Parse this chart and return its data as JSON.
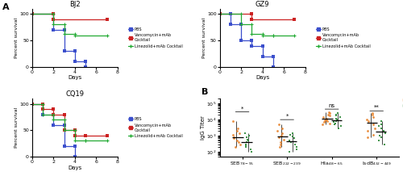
{
  "panels": {
    "BJ2": {
      "title": "BJ2",
      "pbs": {
        "x": [
          0,
          2,
          2,
          3,
          3,
          4,
          4,
          5,
          5
        ],
        "y": [
          100,
          100,
          70,
          70,
          30,
          30,
          10,
          10,
          0
        ]
      },
      "vanc": {
        "x": [
          0,
          2,
          2,
          7
        ],
        "y": [
          100,
          100,
          90,
          90
        ]
      },
      "line_": {
        "x": [
          0,
          2,
          2,
          3,
          3,
          4,
          4,
          7
        ],
        "y": [
          100,
          100,
          80,
          80,
          62,
          62,
          60,
          60
        ]
      }
    },
    "GZ9": {
      "title": "GZ9",
      "pbs": {
        "x": [
          0,
          1,
          1,
          2,
          2,
          3,
          3,
          4,
          4,
          5,
          5
        ],
        "y": [
          100,
          100,
          80,
          80,
          50,
          50,
          40,
          40,
          20,
          20,
          0
        ]
      },
      "vanc": {
        "x": [
          0,
          3,
          3,
          7
        ],
        "y": [
          100,
          100,
          90,
          90
        ]
      },
      "line_": {
        "x": [
          0,
          2,
          2,
          3,
          3,
          4,
          4,
          5,
          5,
          7
        ],
        "y": [
          100,
          100,
          80,
          80,
          62,
          62,
          60,
          60,
          60,
          60
        ]
      }
    },
    "CQ19": {
      "title": "CQ19",
      "pbs": {
        "x": [
          0,
          1,
          1,
          2,
          2,
          3,
          3,
          4,
          4
        ],
        "y": [
          100,
          100,
          80,
          80,
          60,
          60,
          20,
          20,
          0
        ]
      },
      "vanc": {
        "x": [
          0,
          1,
          1,
          2,
          2,
          3,
          3,
          4,
          4,
          5,
          5,
          7
        ],
        "y": [
          100,
          100,
          90,
          90,
          80,
          80,
          50,
          50,
          40,
          40,
          40,
          40
        ]
      },
      "line_": {
        "x": [
          0,
          1,
          1,
          2,
          2,
          3,
          3,
          4,
          4,
          5,
          5,
          7
        ],
        "y": [
          100,
          100,
          80,
          80,
          70,
          70,
          50,
          50,
          30,
          30,
          30,
          30
        ]
      }
    }
  },
  "scatter": {
    "categories": [
      "SEB$_{78-95}$",
      "SEB$_{222-239}$",
      "Hla$_{48-65}$",
      "IsdB$_{432-449}$"
    ],
    "mrsa_color": "#E8822A",
    "healthy_color": "#2E8B3A",
    "mrsa_data": [
      [
        200,
        300,
        400,
        500,
        700,
        800,
        1200,
        1500,
        2000,
        3000,
        8000
      ],
      [
        200,
        300,
        400,
        600,
        800,
        1000,
        1500,
        2000,
        3000,
        5000
      ],
      [
        5000,
        6000,
        7000,
        8000,
        9000,
        10000,
        12000,
        15000,
        18000,
        20000,
        25000,
        30000
      ],
      [
        800,
        1200,
        2000,
        3000,
        5000,
        8000,
        10000,
        15000,
        20000,
        25000
      ]
    ],
    "healthy_data": [
      [
        100,
        150,
        200,
        250,
        300,
        400,
        500,
        600,
        800,
        1000,
        1500
      ],
      [
        100,
        150,
        200,
        300,
        400,
        500,
        700,
        900,
        1200,
        1500
      ],
      [
        3000,
        4000,
        5000,
        6000,
        7000,
        8000,
        10000,
        12000,
        15000,
        18000,
        20000,
        25000
      ],
      [
        300,
        500,
        800,
        1000,
        1500,
        2000,
        3000,
        4000,
        5000,
        8000
      ]
    ],
    "ylabel": "IgG Titer",
    "sig_labels": [
      "*",
      "*",
      "ns",
      "**"
    ],
    "ylim_log": [
      50,
      200000
    ]
  },
  "colors": {
    "pbs": "#3B4FCC",
    "vanc": "#CC2222",
    "line_": "#22AA33"
  },
  "survival_xlabel": "Days",
  "survival_ylabel": "Percent survival",
  "survival_xlim": [
    0,
    8
  ],
  "survival_ylim": [
    0,
    110
  ],
  "survival_xticks": [
    0,
    2,
    4,
    6,
    8
  ],
  "survival_yticks": [
    0,
    50,
    100
  ]
}
